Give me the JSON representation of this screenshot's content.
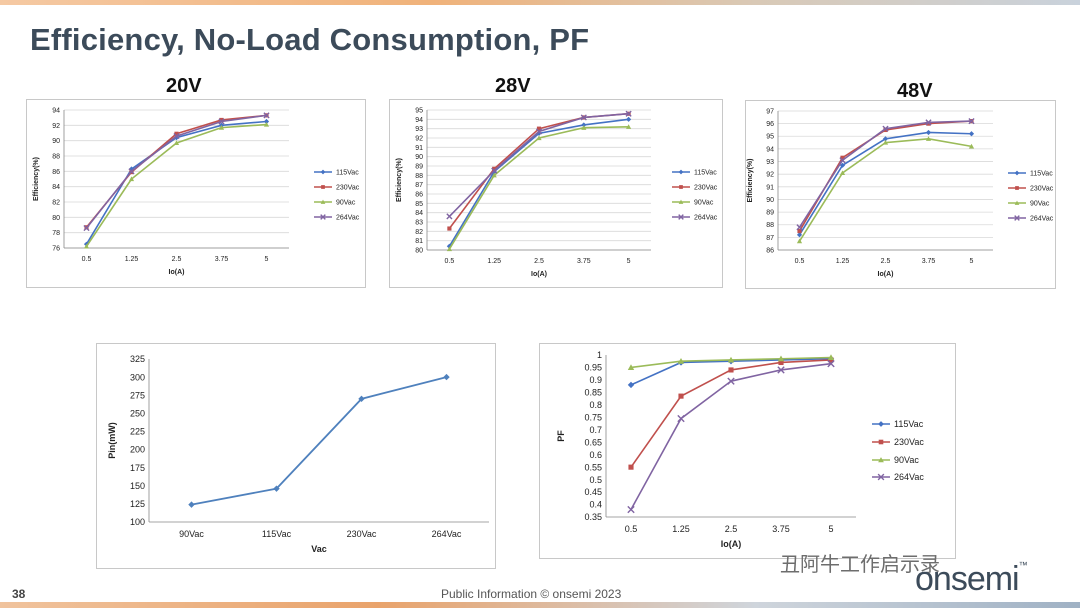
{
  "slide": {
    "title": "Efficiency, No-Load Consumption, PF",
    "page_number": "38",
    "footer": "Public Information   © onsemi 2023",
    "watermark": "丑阿牛工作启示录",
    "brand": "onsemi",
    "brand_tm": "™"
  },
  "voltage_labels": [
    "20V",
    "28V",
    "48V"
  ],
  "chart_data": [
    {
      "id": "eff20",
      "type": "line",
      "title": "",
      "xlabel": "Io(A)",
      "ylabel": "Efficiency(%)",
      "categories": [
        "0.5",
        "1.25",
        "2.5",
        "3.75",
        "5"
      ],
      "ylim": [
        76,
        94
      ],
      "yticks": [
        76,
        78,
        80,
        82,
        84,
        86,
        88,
        90,
        92,
        94
      ],
      "grid": true,
      "legend": "right",
      "series": [
        {
          "name": "115Vac",
          "color": "#4472c4",
          "marker": "diamond",
          "values": [
            76.5,
            86.3,
            90.4,
            92.0,
            92.5
          ]
        },
        {
          "name": "230Vac",
          "color": "#c0504d",
          "marker": "square",
          "values": [
            78.7,
            85.9,
            90.9,
            92.7,
            93.3
          ]
        },
        {
          "name": "90Vac",
          "color": "#9bbb59",
          "marker": "triangle",
          "values": [
            76.2,
            85.0,
            89.7,
            91.7,
            92.1
          ]
        },
        {
          "name": "264Vac",
          "color": "#8064a2",
          "marker": "x",
          "values": [
            78.6,
            86.0,
            90.6,
            92.5,
            93.3
          ]
        }
      ]
    },
    {
      "id": "eff28",
      "type": "line",
      "title": "",
      "xlabel": "Io(A)",
      "ylabel": "Efficiency(%)",
      "categories": [
        "0.5",
        "1.25",
        "2.5",
        "3.75",
        "5"
      ],
      "ylim": [
        80,
        95
      ],
      "yticks": [
        80,
        81,
        82,
        83,
        84,
        85,
        86,
        87,
        88,
        89,
        90,
        91,
        92,
        93,
        94,
        95
      ],
      "grid": true,
      "legend": "right",
      "series": [
        {
          "name": "115Vac",
          "color": "#4472c4",
          "marker": "diamond",
          "values": [
            80.4,
            88.4,
            92.5,
            93.4,
            94.0
          ]
        },
        {
          "name": "230Vac",
          "color": "#c0504d",
          "marker": "square",
          "values": [
            82.3,
            88.7,
            93.0,
            94.2,
            94.6
          ]
        },
        {
          "name": "90Vac",
          "color": "#9bbb59",
          "marker": "triangle",
          "values": [
            80.1,
            88.0,
            92.0,
            93.1,
            93.2
          ]
        },
        {
          "name": "264Vac",
          "color": "#8064a2",
          "marker": "x",
          "values": [
            83.6,
            88.5,
            92.7,
            94.2,
            94.6
          ]
        }
      ]
    },
    {
      "id": "eff48",
      "type": "line",
      "title": "",
      "xlabel": "Io(A)",
      "ylabel": "Efficiency(%)",
      "categories": [
        "0.5",
        "1.25",
        "2.5",
        "3.75",
        "5"
      ],
      "ylim": [
        86,
        97
      ],
      "yticks": [
        86,
        87,
        88,
        89,
        90,
        91,
        92,
        93,
        94,
        95,
        96,
        97
      ],
      "grid": true,
      "legend": "right",
      "series": [
        {
          "name": "115Vac",
          "color": "#4472c4",
          "marker": "diamond",
          "values": [
            87.2,
            92.7,
            94.8,
            95.3,
            95.2
          ]
        },
        {
          "name": "230Vac",
          "color": "#c0504d",
          "marker": "square",
          "values": [
            87.5,
            93.3,
            95.5,
            96.0,
            96.2
          ]
        },
        {
          "name": "90Vac",
          "color": "#9bbb59",
          "marker": "triangle",
          "values": [
            86.7,
            92.1,
            94.5,
            94.8,
            94.2
          ]
        },
        {
          "name": "264Vac",
          "color": "#8064a2",
          "marker": "x",
          "values": [
            87.8,
            93.1,
            95.6,
            96.1,
            96.2
          ]
        }
      ]
    },
    {
      "id": "pin",
      "type": "line",
      "title": "",
      "xlabel": "Vac",
      "ylabel": "Pin(mW)",
      "categories": [
        "90Vac",
        "115Vac",
        "230Vac",
        "264Vac"
      ],
      "ylim": [
        100,
        325
      ],
      "yticks": [
        100,
        125,
        150,
        175,
        200,
        225,
        250,
        275,
        300,
        325
      ],
      "grid": false,
      "legend": "none",
      "series": [
        {
          "name": "",
          "color": "#4f81bd",
          "marker": "diamond",
          "values": [
            124,
            146,
            270,
            300
          ]
        }
      ]
    },
    {
      "id": "pf",
      "type": "line",
      "title": "",
      "xlabel": "Io(A)",
      "ylabel": "PF",
      "categories": [
        "0.5",
        "1.25",
        "2.5",
        "3.75",
        "5"
      ],
      "ylim": [
        0.35,
        1
      ],
      "yticks": [
        0.35,
        0.4,
        0.45,
        0.5,
        0.55,
        0.6,
        0.65,
        0.7,
        0.75,
        0.8,
        0.85,
        0.9,
        0.95,
        1
      ],
      "grid": false,
      "legend": "right",
      "series": [
        {
          "name": "115Vac",
          "color": "#4472c4",
          "marker": "diamond",
          "values": [
            0.88,
            0.97,
            0.975,
            0.98,
            0.985
          ]
        },
        {
          "name": "230Vac",
          "color": "#c0504d",
          "marker": "square",
          "values": [
            0.55,
            0.835,
            0.94,
            0.97,
            0.98
          ]
        },
        {
          "name": "90Vac",
          "color": "#9bbb59",
          "marker": "triangle",
          "values": [
            0.95,
            0.975,
            0.98,
            0.985,
            0.99
          ]
        },
        {
          "name": "264Vac",
          "color": "#8064a2",
          "marker": "x",
          "values": [
            0.38,
            0.745,
            0.895,
            0.94,
            0.965
          ]
        }
      ]
    }
  ]
}
